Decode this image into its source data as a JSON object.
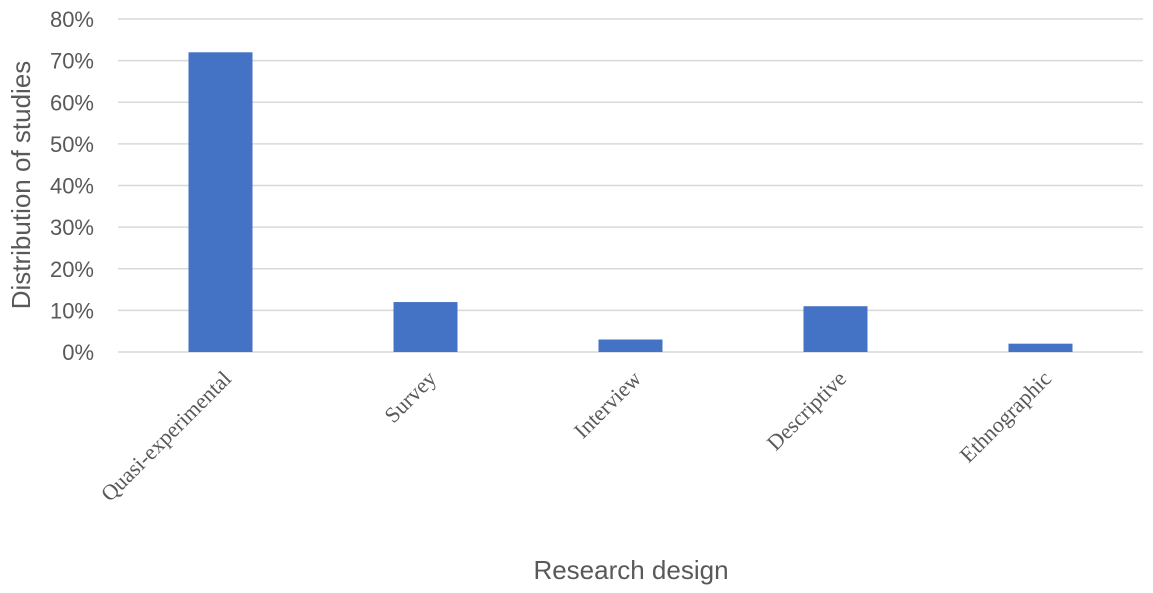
{
  "colors": {
    "bar": "#4472c4",
    "grid": "#d9d9d9",
    "text": "#595959"
  },
  "chart_data": {
    "type": "bar",
    "categories": [
      "Quasi-experimental",
      "Survey",
      "Interview",
      "Descriptive",
      "Ethnographic"
    ],
    "values": [
      72,
      12,
      3,
      11,
      2
    ],
    "value_unit": "%",
    "xlabel": "Research design",
    "ylabel": "Distribution of studies",
    "ylim": [
      0,
      80
    ],
    "yticks": [
      "0%",
      "10%",
      "20%",
      "30%",
      "40%",
      "50%",
      "60%",
      "70%",
      "80%"
    ],
    "grid": true,
    "legend": "none"
  }
}
